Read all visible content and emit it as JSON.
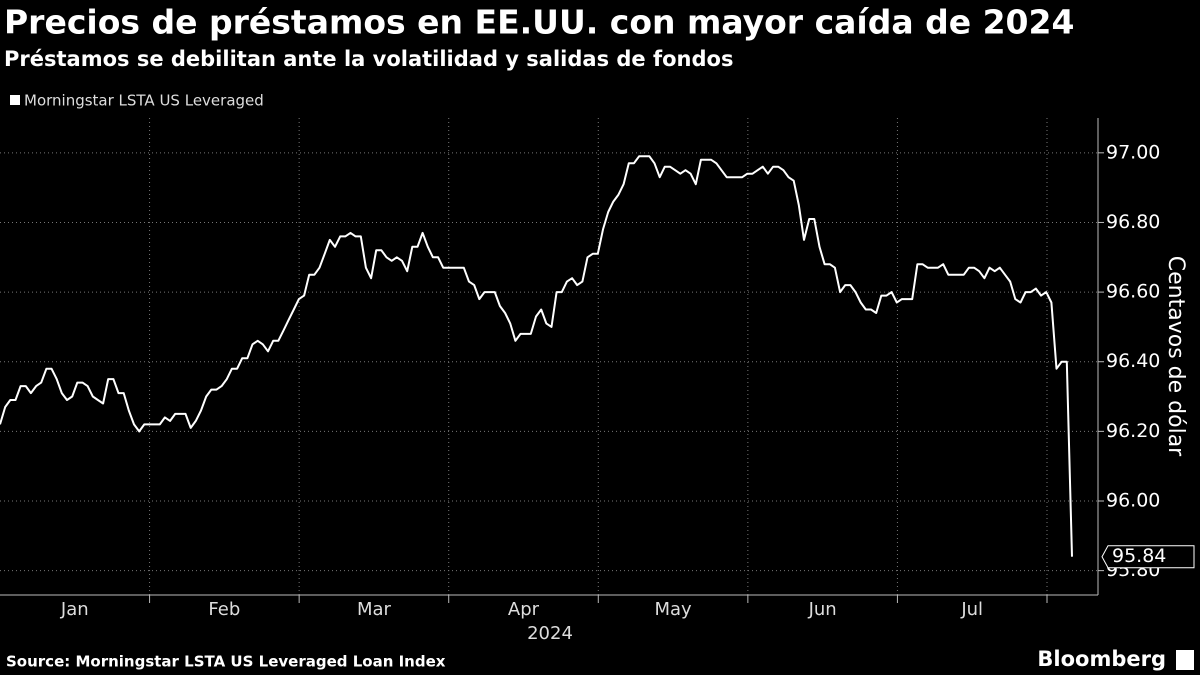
{
  "chart_data": {
    "type": "line",
    "title": "Precios de préstamos en EE.UU. con mayor caída de 2024",
    "subtitle": "Préstamos se debilitan ante la volatilidad y salidas de fondos",
    "ylabel": "Centavos de dólar",
    "source": "Source: Morningstar LSTA US Leveraged Loan Index",
    "brand": "Bloomberg",
    "x_labels": [
      "Jan",
      "Feb",
      "Mar",
      "Apr",
      "May",
      "Jun",
      "Jul"
    ],
    "x_year": "2024",
    "ylim": [
      95.73,
      97.1
    ],
    "yticks": [
      {
        "value": 95.8,
        "label": "95.80"
      },
      {
        "value": 96,
        "label": "96.00"
      },
      {
        "value": 96.2,
        "label": "96.20"
      },
      {
        "value": 96.4,
        "label": "96.40"
      },
      {
        "value": 96.6,
        "label": "96.60"
      },
      {
        "value": 96.8,
        "label": "96.80"
      },
      {
        "value": 97,
        "label": "97.00"
      }
    ],
    "grid": true,
    "series": [
      {
        "name": "Morningstar LSTA US Leveraged",
        "color": "#ffffff",
        "values": [
          96.22,
          96.27,
          96.29,
          96.29,
          96.33,
          96.33,
          96.31,
          96.33,
          96.34,
          96.38,
          96.38,
          96.35,
          96.31,
          96.29,
          96.3,
          96.34,
          96.34,
          96.33,
          96.3,
          96.29,
          96.28,
          96.35,
          96.35,
          96.31,
          96.31,
          96.26,
          96.22,
          96.2,
          96.22,
          96.22,
          96.22,
          96.22,
          96.24,
          96.23,
          96.25,
          96.25,
          96.25,
          96.21,
          96.23,
          96.26,
          96.3,
          96.32,
          96.32,
          96.33,
          96.35,
          96.38,
          96.38,
          96.41,
          96.41,
          96.45,
          96.46,
          96.45,
          96.43,
          96.46,
          96.46,
          96.49,
          96.52,
          96.55,
          96.58,
          96.59,
          96.65,
          96.65,
          96.67,
          96.71,
          96.75,
          96.73,
          96.76,
          96.76,
          96.77,
          96.76,
          96.76,
          96.67,
          96.64,
          96.72,
          96.72,
          96.7,
          96.69,
          96.7,
          96.69,
          96.66,
          96.73,
          96.73,
          96.77,
          96.73,
          96.7,
          96.7,
          96.67,
          96.67,
          96.67,
          96.67,
          96.67,
          96.63,
          96.62,
          96.58,
          96.6,
          96.6,
          96.6,
          96.56,
          96.54,
          96.51,
          96.46,
          96.48,
          96.48,
          96.48,
          96.53,
          96.55,
          96.51,
          96.5,
          96.6,
          96.6,
          96.63,
          96.64,
          96.62,
          96.63,
          96.7,
          96.71,
          96.71,
          96.78,
          96.83,
          96.86,
          96.88,
          96.91,
          96.97,
          96.97,
          96.99,
          96.99,
          96.99,
          96.97,
          96.93,
          96.96,
          96.96,
          96.95,
          96.94,
          96.95,
          96.94,
          96.91,
          96.98,
          96.98,
          96.98,
          96.97,
          96.95,
          96.93,
          96.93,
          96.93,
          96.93,
          96.94,
          96.94,
          96.95,
          96.96,
          96.94,
          96.96,
          96.96,
          96.95,
          96.93,
          96.92,
          96.85,
          96.75,
          96.81,
          96.81,
          96.73,
          96.68,
          96.68,
          96.67,
          96.6,
          96.62,
          96.62,
          96.6,
          96.57,
          96.55,
          96.55,
          96.54,
          96.59,
          96.59,
          96.6,
          96.57,
          96.58,
          96.58,
          96.58,
          96.68,
          96.68,
          96.67,
          96.67,
          96.67,
          96.68,
          96.65,
          96.65,
          96.65,
          96.65,
          96.67,
          96.67,
          96.66,
          96.64,
          96.67,
          96.66,
          96.67,
          96.65,
          96.63,
          96.58,
          96.57,
          96.6,
          96.6,
          96.61,
          96.59,
          96.6,
          96.57,
          96.38,
          96.4,
          96.4,
          95.84
        ]
      }
    ]
  }
}
